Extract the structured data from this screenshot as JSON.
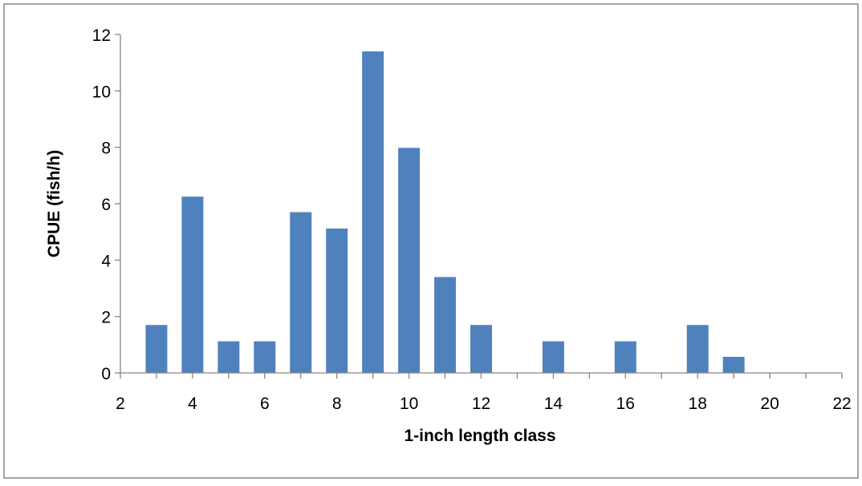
{
  "chart_data": {
    "type": "bar",
    "xlabel": "1-inch length class",
    "ylabel": "CPUE (fish/h)",
    "xlim": [
      2,
      22
    ],
    "ylim": [
      0,
      12
    ],
    "x_ticks": [
      2,
      4,
      6,
      8,
      10,
      12,
      14,
      16,
      18,
      20,
      22
    ],
    "y_ticks": [
      0,
      2,
      4,
      6,
      8,
      10,
      12
    ],
    "grid": false,
    "legend": "none",
    "bar_color": "#4F81BD",
    "x": [
      3,
      4,
      5,
      6,
      7,
      8,
      9,
      10,
      11,
      12,
      13,
      14,
      15,
      16,
      17,
      18,
      19,
      20,
      21
    ],
    "values": [
      1.7,
      6.25,
      1.12,
      1.12,
      5.7,
      5.12,
      11.4,
      7.98,
      3.4,
      1.7,
      0,
      1.12,
      0,
      1.12,
      0,
      1.7,
      0.57,
      0,
      0
    ]
  }
}
